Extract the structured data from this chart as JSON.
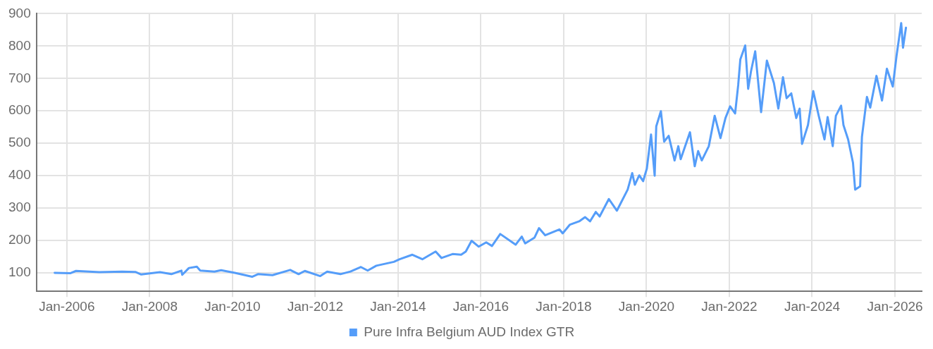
{
  "chart_data": {
    "type": "line",
    "x": [
      "2005-09-16",
      "2006-02-03",
      "2006-03-23",
      "2006-10-15",
      "2007-05-03",
      "2007-08-28",
      "2007-10-19",
      "2008-04-01",
      "2008-07-11",
      "2008-10-08",
      "2008-10-15",
      "2008-12-13",
      "2009-02-21",
      "2009-03-23",
      "2009-07-26",
      "2009-09-23",
      "2010-01-22",
      "2010-06-23",
      "2010-08-14",
      "2010-12-20",
      "2011-05-25",
      "2011-08-07",
      "2011-10-01",
      "2012-02-14",
      "2012-04-15",
      "2012-08-10",
      "2012-11-07",
      "2013-02-07",
      "2013-04-08",
      "2013-06-23",
      "2013-11-25",
      "2014-01-15",
      "2014-05-07",
      "2014-08-03",
      "2014-11-28",
      "2015-01-19",
      "2015-04-26",
      "2015-07-11",
      "2015-08-21",
      "2015-10-11",
      "2015-12-13",
      "2016-02-17",
      "2016-04-08",
      "2016-06-20",
      "2016-11-03",
      "2016-12-27",
      "2017-01-26",
      "2017-04-19",
      "2017-05-28",
      "2017-07-22",
      "2017-11-25",
      "2017-12-23",
      "2018-02-25",
      "2018-05-17",
      "2018-07-08",
      "2018-08-21",
      "2018-10-11",
      "2018-11-14",
      "2019-02-03",
      "2019-04-15",
      "2019-07-19",
      "2019-08-28",
      "2019-09-20",
      "2019-10-29",
      "2019-12-02",
      "2020-01-04",
      "2020-02-10",
      "2020-03-13",
      "2020-03-27",
      "2020-05-07",
      "2020-06-05",
      "2020-07-15",
      "2020-09-05",
      "2020-10-08",
      "2020-10-29",
      "2021-01-19",
      "2021-03-02",
      "2021-04-01",
      "2021-05-03",
      "2021-07-04",
      "2021-08-25",
      "2021-10-15",
      "2021-11-28",
      "2022-01-08",
      "2022-02-21",
      "2022-03-20",
      "2022-04-08",
      "2022-05-21",
      "2022-06-16",
      "2022-07-11",
      "2022-08-17",
      "2022-10-08",
      "2022-11-28",
      "2023-01-29",
      "2023-03-09",
      "2023-04-19",
      "2023-05-21",
      "2023-07-01",
      "2023-08-14",
      "2023-09-13",
      "2023-10-04",
      "2023-11-25",
      "2024-01-11",
      "2024-02-28",
      "2024-04-19",
      "2024-05-17",
      "2024-07-01",
      "2024-07-29",
      "2024-09-13",
      "2024-10-04",
      "2024-11-14",
      "2024-12-27",
      "2025-01-15",
      "2025-02-28",
      "2025-03-16",
      "2025-04-29",
      "2025-05-28",
      "2025-07-22",
      "2025-09-09",
      "2025-10-22",
      "2025-12-13",
      "2026-01-15",
      "2026-02-25",
      "2026-03-13",
      "2026-04-08"
    ],
    "series": [
      {
        "name": "Pure Infra Belgium AUD Index GTR",
        "color": "#559df9",
        "values": [
          100,
          99,
          106,
          102,
          104,
          103,
          95,
          102,
          96,
          107,
          94,
          115,
          119,
          107,
          104,
          108,
          100,
          88,
          96,
          93,
          109,
          96,
          106,
          90,
          104,
          96,
          104,
          118,
          107,
          122,
          134,
          142,
          156,
          142,
          166,
          146,
          158,
          156,
          166,
          199,
          181,
          194,
          183,
          220,
          187,
          212,
          191,
          209,
          238,
          216,
          234,
          222,
          249,
          259,
          272,
          259,
          288,
          274,
          328,
          292,
          357,
          408,
          372,
          401,
          383,
          422,
          527,
          400,
          552,
          599,
          505,
          523,
          447,
          491,
          451,
          534,
          429,
          476,
          447,
          491,
          585,
          516,
          578,
          614,
          592,
          679,
          759,
          802,
          668,
          722,
          784,
          596,
          755,
          686,
          607,
          704,
          639,
          654,
          578,
          607,
          498,
          556,
          661,
          585,
          512,
          581,
          491,
          585,
          616,
          556,
          512,
          440,
          357,
          367,
          520,
          643,
          610,
          708,
          632,
          730,
          675,
          770,
          871,
          795,
          857
        ]
      }
    ],
    "xlim": [
      "2005-04-08",
      "2026-08-25"
    ],
    "xticks": [
      {
        "value": "2006-01",
        "label": "Jan-2006"
      },
      {
        "value": "2008-01",
        "label": "Jan-2008"
      },
      {
        "value": "2010-01",
        "label": "Jan-2010"
      },
      {
        "value": "2012-01",
        "label": "Jan-2012"
      },
      {
        "value": "2014-01",
        "label": "Jan-2014"
      },
      {
        "value": "2016-01",
        "label": "Jan-2016"
      },
      {
        "value": "2018-01",
        "label": "Jan-2018"
      },
      {
        "value": "2020-01",
        "label": "Jan-2020"
      },
      {
        "value": "2022-01",
        "label": "Jan-2022"
      },
      {
        "value": "2024-01",
        "label": "Jan-2024"
      },
      {
        "value": "2026-01",
        "label": "Jan-2026"
      }
    ],
    "ylim": [
      43,
      900
    ],
    "yticks": [
      100,
      200,
      300,
      400,
      500,
      600,
      700,
      800,
      900
    ],
    "grid": true,
    "legend": "bottom",
    "marker": "none",
    "line_style": "solid"
  }
}
